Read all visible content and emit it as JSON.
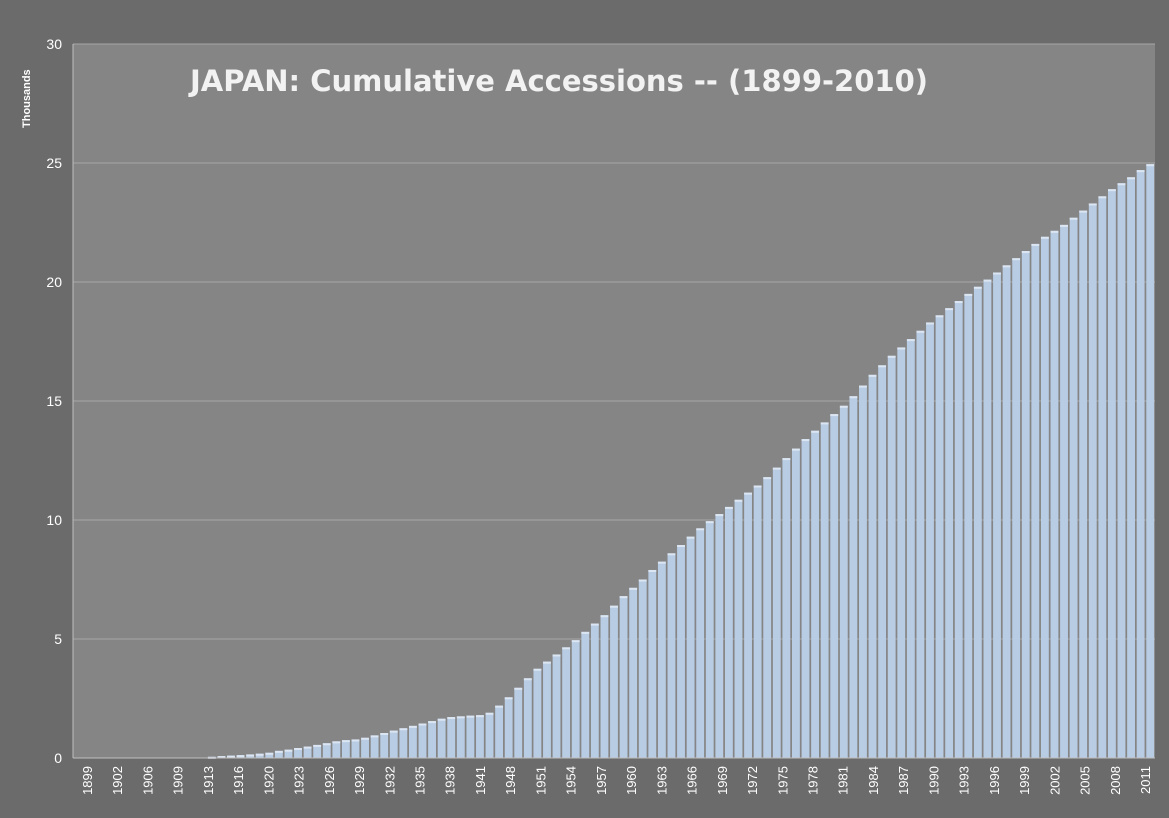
{
  "chart_data": {
    "type": "bar",
    "title": "JAPAN:  Cumulative Accessions -- (1899-2010)",
    "ylabel": "Thousands",
    "xlabel": "",
    "ylim": [
      0,
      30
    ],
    "yticks": [
      "0",
      "5",
      "10",
      "15",
      "20",
      "25",
      "30"
    ],
    "xtick_labels": [
      "1899",
      "1902",
      "1906",
      "1909",
      "1913",
      "1916",
      "1920",
      "1923",
      "1926",
      "1929",
      "1932",
      "1935",
      "1938",
      "1941",
      "1948",
      "1951",
      "1954",
      "1957",
      "1960",
      "1963",
      "1966",
      "1969",
      "1972",
      "1975",
      "1978",
      "1981",
      "1984",
      "1987",
      "1990",
      "1993",
      "1996",
      "1999",
      "2002",
      "2005",
      "2008",
      "2011"
    ],
    "grid": true,
    "colors": {
      "bar": "#b8cce4",
      "bar_highlight": "#dce6f2",
      "plot_bg": "#858585",
      "frame_bg": "#6b6b6b",
      "grid": "#a6a6a6"
    },
    "series": [
      {
        "values": [
          0,
          0,
          0,
          0,
          0,
          0,
          0,
          0,
          0,
          0,
          0,
          0,
          0,
          0.02,
          0.05,
          0.08,
          0.1,
          0.12,
          0.15,
          0.18,
          0.22,
          0.3,
          0.35,
          0.42,
          0.48,
          0.55,
          0.62,
          0.7,
          0.75,
          0.78,
          0.85,
          0.95,
          1.05,
          1.15,
          1.25,
          1.35,
          1.45,
          1.55,
          1.65,
          1.72,
          1.75,
          1.78,
          1.8,
          1.9,
          2.2,
          2.55,
          2.95,
          3.35,
          3.75,
          4.05,
          4.35,
          4.65,
          4.95,
          5.3,
          5.65,
          6.0,
          6.4,
          6.8,
          7.15,
          7.5,
          7.9,
          8.25,
          8.6,
          8.95,
          9.3,
          9.65,
          9.95,
          10.25,
          10.55,
          10.85,
          11.15,
          11.45,
          11.8,
          12.2,
          12.6,
          13.0,
          13.4,
          13.75,
          14.1,
          14.45,
          14.8,
          15.2,
          15.65,
          16.1,
          16.5,
          16.9,
          17.25,
          17.6,
          17.95,
          18.3,
          18.6,
          18.9,
          19.2,
          19.5,
          19.8,
          20.1,
          20.4,
          20.7,
          21.0,
          21.3,
          21.6,
          21.9,
          22.15,
          22.4,
          22.7,
          23.0,
          23.3,
          23.6,
          23.9,
          24.15,
          24.4,
          24.7,
          24.95
        ]
      }
    ]
  }
}
